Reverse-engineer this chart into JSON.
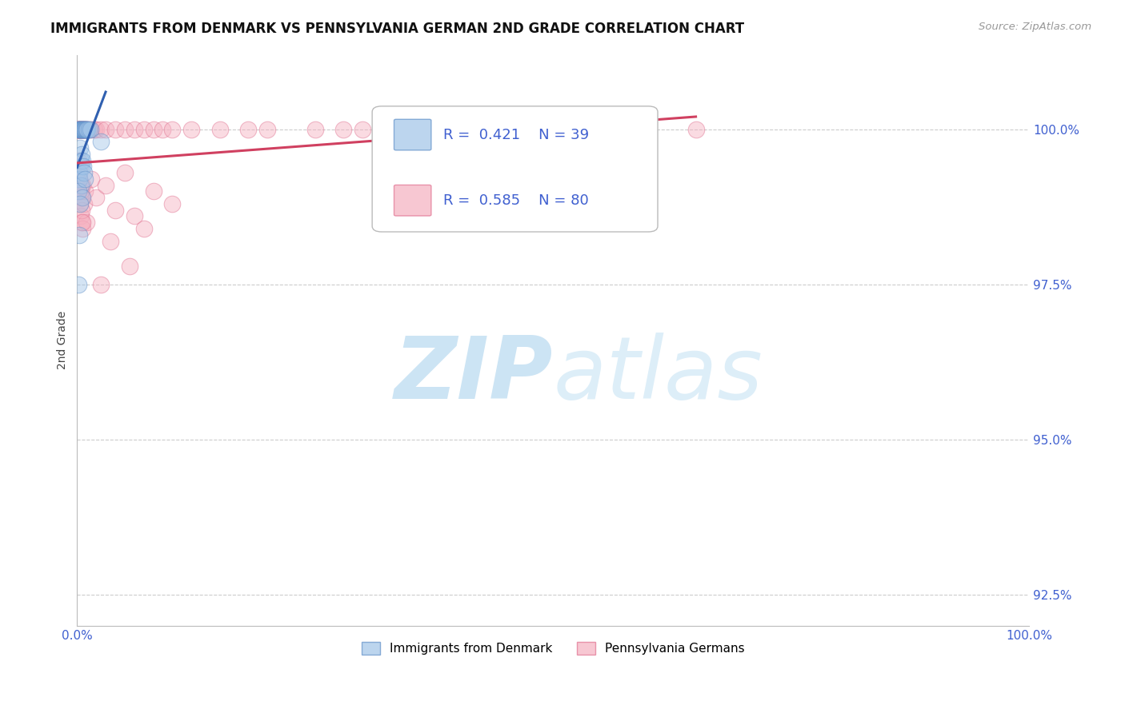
{
  "title": "IMMIGRANTS FROM DENMARK VS PENNSYLVANIA GERMAN 2ND GRADE CORRELATION CHART",
  "source_text": "Source: ZipAtlas.com",
  "ylabel": "2nd Grade",
  "watermark_zip": "ZIP",
  "watermark_atlas": "atlas",
  "legend_blue_R": 0.421,
  "legend_blue_N": 39,
  "legend_pink_R": 0.585,
  "legend_pink_N": 80,
  "blue_color": "#a0c4e8",
  "blue_edge": "#6090c8",
  "pink_color": "#f5b0c0",
  "pink_edge": "#e07090",
  "blue_line_color": "#3060b0",
  "pink_line_color": "#d04060",
  "grid_color": "#cccccc",
  "bg_color": "#ffffff",
  "title_color": "#111111",
  "axis_tick_color": "#4060d0",
  "source_color": "#999999",
  "watermark_color": "#cce4f4",
  "ylabel_color": "#444444",
  "xlim": [
    0,
    100
  ],
  "ylim": [
    92.0,
    101.2
  ],
  "yticks": [
    92.5,
    95.0,
    97.5,
    100.0
  ],
  "xtick_positions": [
    0,
    25,
    50,
    75,
    100
  ],
  "blue_x": [
    0.1,
    0.15,
    0.2,
    0.25,
    0.3,
    0.35,
    0.4,
    0.45,
    0.5,
    0.55,
    0.6,
    0.65,
    0.7,
    0.75,
    0.8,
    0.85,
    0.9,
    0.95,
    1.0,
    1.1,
    1.2,
    1.4,
    0.3,
    0.4,
    0.5,
    0.2,
    0.25,
    0.35,
    0.15,
    0.6,
    0.45,
    0.55,
    0.65,
    0.75,
    0.85,
    2.5,
    0.1,
    0.2,
    0.3
  ],
  "blue_y": [
    100.0,
    100.0,
    100.0,
    100.0,
    100.0,
    100.0,
    100.0,
    100.0,
    100.0,
    100.0,
    100.0,
    100.0,
    100.0,
    100.0,
    100.0,
    100.0,
    100.0,
    100.0,
    100.0,
    100.0,
    100.0,
    100.0,
    99.7,
    99.5,
    99.4,
    99.3,
    99.2,
    99.1,
    99.0,
    98.9,
    99.6,
    99.5,
    99.4,
    99.3,
    99.2,
    99.8,
    97.5,
    98.3,
    98.8
  ],
  "pink_x": [
    0.05,
    0.08,
    0.1,
    0.12,
    0.15,
    0.18,
    0.2,
    0.22,
    0.25,
    0.3,
    0.35,
    0.4,
    0.45,
    0.5,
    0.55,
    0.6,
    0.65,
    0.7,
    0.75,
    0.8,
    0.9,
    1.0,
    1.1,
    1.2,
    1.5,
    1.8,
    2.0,
    2.5,
    3.0,
    4.0,
    5.0,
    6.0,
    7.0,
    8.0,
    9.0,
    10.0,
    12.0,
    15.0,
    18.0,
    20.0,
    25.0,
    28.0,
    30.0,
    35.0,
    40.0,
    45.0,
    50.0,
    55.0,
    60.0,
    65.0,
    0.1,
    0.2,
    0.3,
    0.4,
    0.5,
    0.6,
    0.7,
    0.8,
    1.0,
    1.5,
    2.0,
    3.0,
    4.0,
    5.0,
    6.0,
    7.0,
    8.0,
    10.0,
    0.15,
    0.25,
    0.35,
    0.45,
    0.55,
    0.3,
    0.4,
    0.5,
    2.5,
    3.5,
    5.5,
    0.6
  ],
  "pink_y": [
    100.0,
    100.0,
    100.0,
    100.0,
    100.0,
    100.0,
    100.0,
    100.0,
    100.0,
    100.0,
    100.0,
    100.0,
    100.0,
    100.0,
    100.0,
    100.0,
    100.0,
    100.0,
    100.0,
    100.0,
    100.0,
    100.0,
    100.0,
    100.0,
    100.0,
    100.0,
    100.0,
    100.0,
    100.0,
    100.0,
    100.0,
    100.0,
    100.0,
    100.0,
    100.0,
    100.0,
    100.0,
    100.0,
    100.0,
    100.0,
    100.0,
    100.0,
    100.0,
    100.0,
    100.0,
    100.0,
    100.0,
    100.0,
    100.0,
    100.0,
    99.3,
    99.0,
    98.8,
    98.6,
    98.5,
    98.4,
    98.8,
    99.0,
    98.5,
    99.2,
    98.9,
    99.1,
    98.7,
    99.3,
    98.6,
    98.4,
    99.0,
    98.8,
    99.5,
    99.2,
    99.0,
    98.7,
    98.5,
    99.4,
    99.1,
    98.9,
    97.5,
    98.2,
    97.8,
    99.1
  ]
}
